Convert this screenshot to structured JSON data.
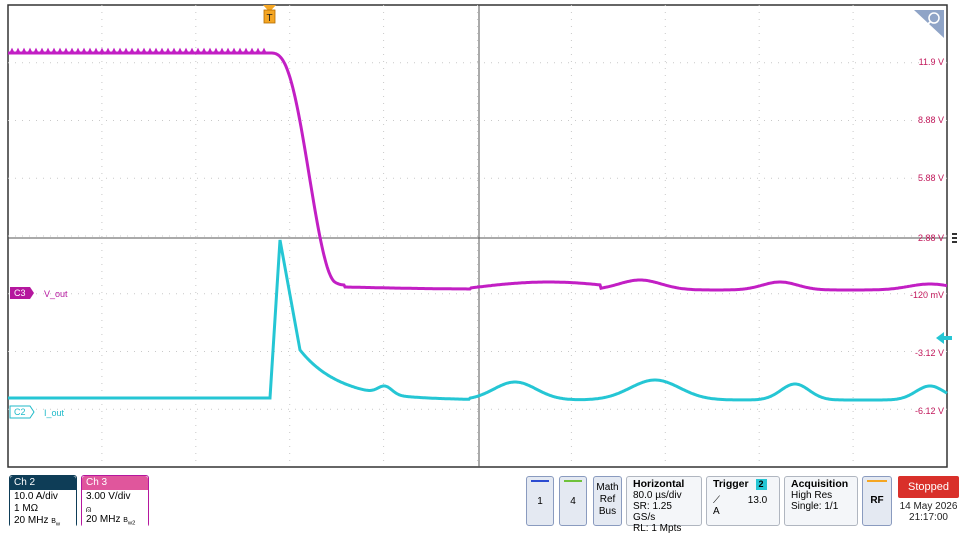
{
  "trigger_marker": "T",
  "channels": {
    "c3": {
      "badge": "C3",
      "label": "V_out",
      "color": "#b5179e",
      "trace_color": "#c21fc4"
    },
    "c2": {
      "badge": "C2",
      "label": "I_out",
      "color": "#1fbac9",
      "trace_color": "#25c6d4"
    }
  },
  "y_axis_labels": [
    "11.9 V",
    "8.88 V",
    "5.88 V",
    "2.88 V",
    "-120 mV",
    "-3.12 V",
    "-6.12 V"
  ],
  "icons": [
    "zoom-icon",
    "trigger-level-arrow-icon",
    "more-options-icon",
    "trigger-marker-icon"
  ],
  "status": {
    "ch2": {
      "title": "Ch 2",
      "line1": "10.0 A/div",
      "line2": "1 MΩ",
      "line3": "20 MHz",
      "line3_suffix": "B",
      "color": "#0e3d57"
    },
    "ch3": {
      "title": "Ch 3",
      "line1": "3.00 V/div",
      "line2": "",
      "line3": "20 MHz",
      "line3_suffix": "B",
      "color": "#b5179e"
    },
    "buttons": {
      "b1": "1",
      "b4": "4",
      "math": "Math",
      "ref": "Ref",
      "bus": "Bus"
    },
    "horizontal": {
      "title": "Horizontal",
      "scale": "80.0 µs/div",
      "sr": "SR: 1.25 GS/s",
      "rl": "RL: 1 Mpts"
    },
    "trigger": {
      "title": "Trigger",
      "channel": "2",
      "level": "13.0 A"
    },
    "acquisition": {
      "title": "Acquisition",
      "mode": "High Res",
      "single": "Single: 1/1"
    },
    "rf": "RF",
    "run_state": "Stopped",
    "date": "14 May 2026",
    "time": "21:17:00"
  }
}
